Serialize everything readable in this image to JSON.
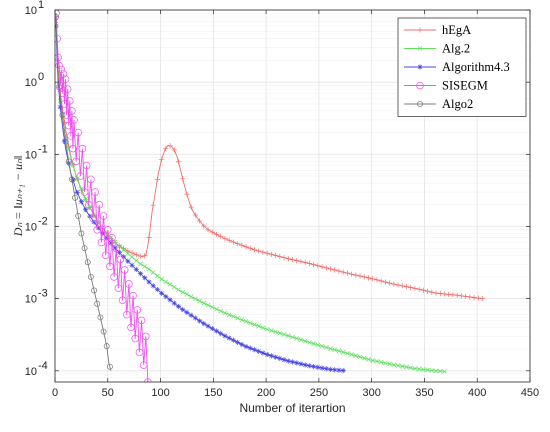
{
  "chart_data": {
    "type": "line",
    "xlabel": "Number of iterartion",
    "ylabel": "D_n = ||u_{n+1} - u_n||",
    "ylabel_display": "Dₙ = ‖uₙ₊₁ − uₙ‖",
    "xlim": [
      0,
      450
    ],
    "ylim": [
      7e-05,
      10
    ],
    "yscale": "log",
    "grid": true,
    "legend_position": "top-right",
    "x_ticks": [
      0,
      50,
      100,
      150,
      200,
      250,
      300,
      350,
      400,
      450
    ],
    "y_ticks": [
      {
        "value": 10,
        "mantissa": "10",
        "exp": "1"
      },
      {
        "value": 1,
        "mantissa": "10",
        "exp": "0"
      },
      {
        "value": 0.1,
        "mantissa": "10",
        "exp": "-1"
      },
      {
        "value": 0.01,
        "mantissa": "10",
        "exp": "-2"
      },
      {
        "value": 0.001,
        "mantissa": "10",
        "exp": "-3"
      },
      {
        "value": 0.0001,
        "mantissa": "10",
        "exp": "-4"
      }
    ],
    "series": [
      {
        "name": "hEgA",
        "color": "#f26c6c",
        "marker": "plus",
        "points": [
          [
            1,
            8
          ],
          [
            2,
            3
          ],
          [
            3,
            1.5
          ],
          [
            4,
            1.0
          ],
          [
            6,
            0.55
          ],
          [
            8,
            0.35
          ],
          [
            10,
            0.22
          ],
          [
            13,
            0.13
          ],
          [
            16,
            0.08
          ],
          [
            20,
            0.05
          ],
          [
            25,
            0.032
          ],
          [
            30,
            0.022
          ],
          [
            40,
            0.012
          ],
          [
            50,
            0.0075
          ],
          [
            60,
            0.0055
          ],
          [
            70,
            0.0045
          ],
          [
            78,
            0.004
          ],
          [
            83,
            0.0038
          ],
          [
            86,
            0.004
          ],
          [
            88,
            0.0055
          ],
          [
            90,
            0.009
          ],
          [
            92,
            0.016
          ],
          [
            95,
            0.03
          ],
          [
            98,
            0.055
          ],
          [
            101,
            0.085
          ],
          [
            104,
            0.115
          ],
          [
            107,
            0.133
          ],
          [
            110,
            0.13
          ],
          [
            113,
            0.115
          ],
          [
            116,
            0.09
          ],
          [
            119,
            0.06
          ],
          [
            122,
            0.04
          ],
          [
            125,
            0.028
          ],
          [
            128,
            0.02
          ],
          [
            131,
            0.016
          ],
          [
            135,
            0.013
          ],
          [
            140,
            0.0105
          ],
          [
            145,
            0.009
          ],
          [
            150,
            0.0082
          ],
          [
            160,
            0.0069
          ],
          [
            170,
            0.006
          ],
          [
            180,
            0.0053
          ],
          [
            190,
            0.0047
          ],
          [
            200,
            0.0043
          ],
          [
            220,
            0.0036
          ],
          [
            240,
            0.0031
          ],
          [
            260,
            0.0026
          ],
          [
            280,
            0.0022
          ],
          [
            300,
            0.0019
          ],
          [
            320,
            0.0016
          ],
          [
            340,
            0.0014
          ],
          [
            360,
            0.0012
          ],
          [
            380,
            0.00112
          ],
          [
            400,
            0.00102
          ],
          [
            405,
            0.001
          ]
        ]
      },
      {
        "name": "Alg.2",
        "color": "#5fe05f",
        "marker": "cross",
        "points": [
          [
            1,
            7
          ],
          [
            2,
            2.5
          ],
          [
            3,
            1.2
          ],
          [
            5,
            0.55
          ],
          [
            7,
            0.32
          ],
          [
            10,
            0.18
          ],
          [
            15,
            0.09
          ],
          [
            20,
            0.05
          ],
          [
            30,
            0.022
          ],
          [
            40,
            0.012
          ],
          [
            50,
            0.0078
          ],
          [
            60,
            0.0055
          ],
          [
            70,
            0.0041
          ],
          [
            80,
            0.0031
          ],
          [
            90,
            0.0025
          ],
          [
            100,
            0.0019
          ],
          [
            120,
            0.00125
          ],
          [
            140,
            0.00088
          ],
          [
            160,
            0.00064
          ],
          [
            180,
            0.00049
          ],
          [
            200,
            0.00038
          ],
          [
            220,
            0.00031
          ],
          [
            240,
            0.00025
          ],
          [
            260,
            0.000205
          ],
          [
            280,
            0.00017
          ],
          [
            300,
            0.00014
          ],
          [
            320,
            0.000122
          ],
          [
            340,
            0.000108
          ],
          [
            360,
            0.0001
          ],
          [
            370,
            9.75e-05
          ]
        ]
      },
      {
        "name": "Algorithm4.3",
        "color": "#4646e6",
        "marker": "star",
        "points": [
          [
            1,
            6
          ],
          [
            2,
            2
          ],
          [
            3,
            1.0
          ],
          [
            5,
            0.45
          ],
          [
            7,
            0.25
          ],
          [
            10,
            0.12
          ],
          [
            15,
            0.055
          ],
          [
            20,
            0.032
          ],
          [
            25,
            0.022
          ],
          [
            30,
            0.016
          ],
          [
            40,
            0.01
          ],
          [
            50,
            0.0066
          ],
          [
            60,
            0.0045
          ],
          [
            70,
            0.0032
          ],
          [
            80,
            0.0023
          ],
          [
            90,
            0.00165
          ],
          [
            100,
            0.00122
          ],
          [
            120,
            0.00072
          ],
          [
            140,
            0.00046
          ],
          [
            160,
            0.00031
          ],
          [
            180,
            0.00022
          ],
          [
            200,
            0.00017
          ],
          [
            220,
            0.000138
          ],
          [
            240,
            0.000118
          ],
          [
            260,
            0.000105
          ],
          [
            275,
            0.0001
          ]
        ]
      },
      {
        "name": "SISEGM",
        "color": "#f050f0",
        "marker": "circle",
        "points": [
          [
            1,
            9
          ],
          [
            2,
            4
          ],
          [
            3,
            2.2
          ],
          [
            4,
            1.7
          ],
          [
            5,
            0.9
          ],
          [
            6,
            1.5
          ],
          [
            7,
            0.7
          ],
          [
            8,
            1.3
          ],
          [
            9,
            0.5
          ],
          [
            10,
            1.1
          ],
          [
            11,
            0.35
          ],
          [
            12,
            0.8
          ],
          [
            13,
            0.25
          ],
          [
            14,
            0.55
          ],
          [
            15,
            0.18
          ],
          [
            16,
            0.4
          ],
          [
            17,
            0.12
          ],
          [
            18,
            0.3
          ],
          [
            20,
            0.08
          ],
          [
            22,
            0.2
          ],
          [
            24,
            0.05
          ],
          [
            26,
            0.12
          ],
          [
            28,
            0.03
          ],
          [
            30,
            0.07
          ],
          [
            32,
            0.02
          ],
          [
            34,
            0.045
          ],
          [
            36,
            0.013
          ],
          [
            38,
            0.03
          ],
          [
            40,
            0.009
          ],
          [
            42,
            0.02
          ],
          [
            44,
            0.006
          ],
          [
            46,
            0.014
          ],
          [
            48,
            0.004
          ],
          [
            50,
            0.009
          ],
          [
            52,
            0.0028
          ],
          [
            54,
            0.007
          ],
          [
            56,
            0.002
          ],
          [
            58,
            0.005
          ],
          [
            60,
            0.0014
          ],
          [
            62,
            0.0035
          ],
          [
            64,
            0.00095
          ],
          [
            66,
            0.0025
          ],
          [
            68,
            0.0006
          ],
          [
            70,
            0.0016
          ],
          [
            72,
            0.0004
          ],
          [
            74,
            0.0011
          ],
          [
            76,
            0.00028
          ],
          [
            78,
            0.0007
          ],
          [
            80,
            0.00018
          ],
          [
            82,
            0.0005
          ],
          [
            84,
            0.00012
          ],
          [
            86,
            0.0003
          ],
          [
            88,
            7e-05
          ]
        ]
      },
      {
        "name": "Algo2",
        "color": "#7a7a7a",
        "marker": "circle-small",
        "points": [
          [
            1,
            8
          ],
          [
            2,
            3
          ],
          [
            3,
            1.2
          ],
          [
            5,
            0.6
          ],
          [
            7,
            0.35
          ],
          [
            10,
            0.15
          ],
          [
            13,
            0.08
          ],
          [
            16,
            0.045
          ],
          [
            19,
            0.025
          ],
          [
            22,
            0.014
          ],
          [
            25,
            0.008
          ],
          [
            28,
            0.005
          ],
          [
            31,
            0.0032
          ],
          [
            34,
            0.002
          ],
          [
            37,
            0.0013
          ],
          [
            40,
            0.00085
          ],
          [
            43,
            0.00055
          ],
          [
            46,
            0.00035
          ],
          [
            49,
            0.00022
          ],
          [
            51,
            0.00013
          ],
          [
            53,
            0.0001
          ]
        ]
      }
    ]
  }
}
